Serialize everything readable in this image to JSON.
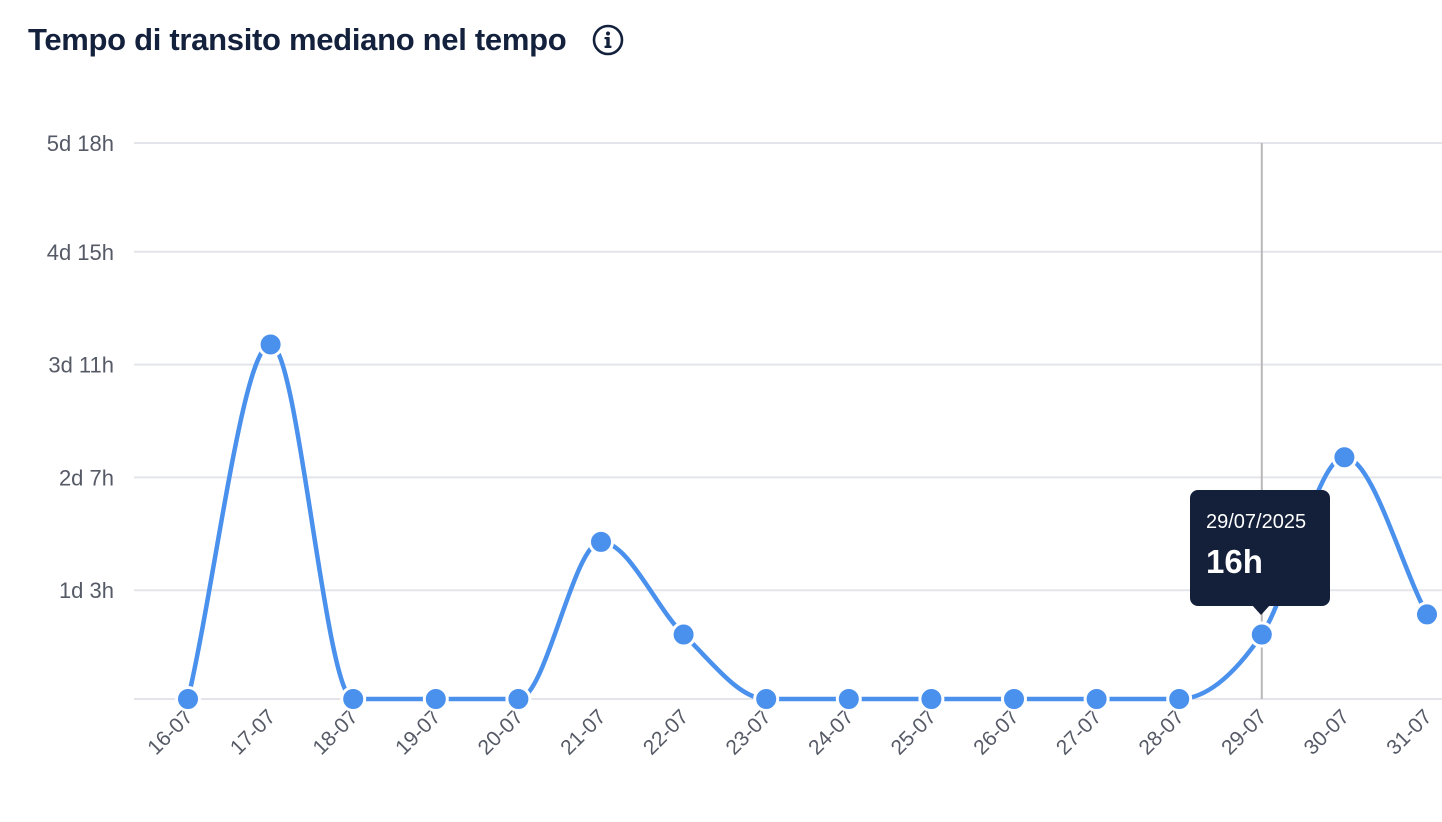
{
  "header": {
    "title": "Tempo di transito mediano nel tempo",
    "info_icon": "info-circle-icon"
  },
  "tooltip": {
    "date": "29/07/2025",
    "value": "16h"
  },
  "colors": {
    "line": "#4a90ed",
    "tooltip_bg": "#141f3a",
    "title": "#14213d",
    "grid": "#e3e5ea",
    "crosshair": "#b8b8b8"
  },
  "chart_data": {
    "type": "line",
    "title": "Tempo di transito mediano nel tempo",
    "xlabel": "",
    "ylabel": "",
    "categories": [
      "16-07",
      "17-07",
      "18-07",
      "19-07",
      "20-07",
      "21-07",
      "22-07",
      "23-07",
      "24-07",
      "25-07",
      "26-07",
      "27-07",
      "28-07",
      "29-07",
      "30-07",
      "31-07"
    ],
    "series": [
      {
        "values": [
          0,
          88,
          0,
          0,
          0,
          39,
          16,
          0,
          0,
          0,
          0,
          0,
          0,
          16,
          60,
          21
        ]
      }
    ],
    "value_unit": "hours",
    "y_ticks": [
      {
        "value": 27,
        "label": "1d 3h"
      },
      {
        "value": 55,
        "label": "2d 7h"
      },
      {
        "value": 83,
        "label": "3d 11h"
      },
      {
        "value": 111,
        "label": "4d 15h"
      },
      {
        "value": 138,
        "label": "5d 18h"
      }
    ],
    "ylim": [
      0,
      138
    ],
    "grid": true,
    "highlight_category": "29-07"
  }
}
